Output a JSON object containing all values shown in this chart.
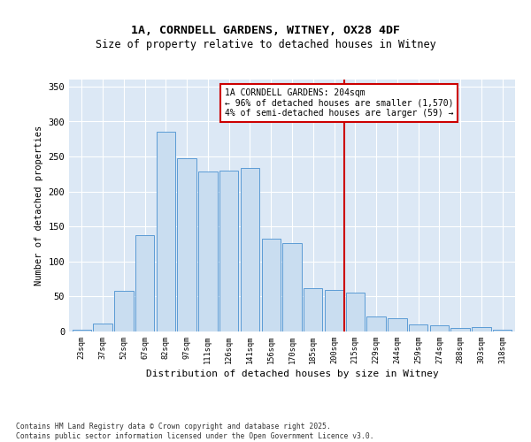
{
  "title1": "1A, CORNDELL GARDENS, WITNEY, OX28 4DF",
  "title2": "Size of property relative to detached houses in Witney",
  "xlabel": "Distribution of detached houses by size in Witney",
  "ylabel": "Number of detached properties",
  "bins": [
    "23sqm",
    "37sqm",
    "52sqm",
    "67sqm",
    "82sqm",
    "97sqm",
    "111sqm",
    "126sqm",
    "141sqm",
    "156sqm",
    "170sqm",
    "185sqm",
    "200sqm",
    "215sqm",
    "229sqm",
    "244sqm",
    "259sqm",
    "274sqm",
    "288sqm",
    "303sqm",
    "318sqm"
  ],
  "values": [
    3,
    11,
    58,
    138,
    286,
    247,
    228,
    230,
    234,
    133,
    126,
    62,
    60,
    56,
    22,
    19,
    10,
    9,
    5,
    6,
    2
  ],
  "bar_color": "#c9ddf0",
  "bar_edge_color": "#5b9bd5",
  "vline_color": "#cc0000",
  "annotation_text": "1A CORNDELL GARDENS: 204sqm\n← 96% of detached houses are smaller (1,570)\n4% of semi-detached houses are larger (59) →",
  "annotation_box_color": "#cc0000",
  "ylim": [
    0,
    360
  ],
  "yticks": [
    0,
    50,
    100,
    150,
    200,
    250,
    300,
    350
  ],
  "background_color": "#dce8f5",
  "fig_background_color": "#ffffff",
  "grid_color": "#ffffff",
  "footer1": "Contains HM Land Registry data © Crown copyright and database right 2025.",
  "footer2": "Contains public sector information licensed under the Open Government Licence v3.0."
}
